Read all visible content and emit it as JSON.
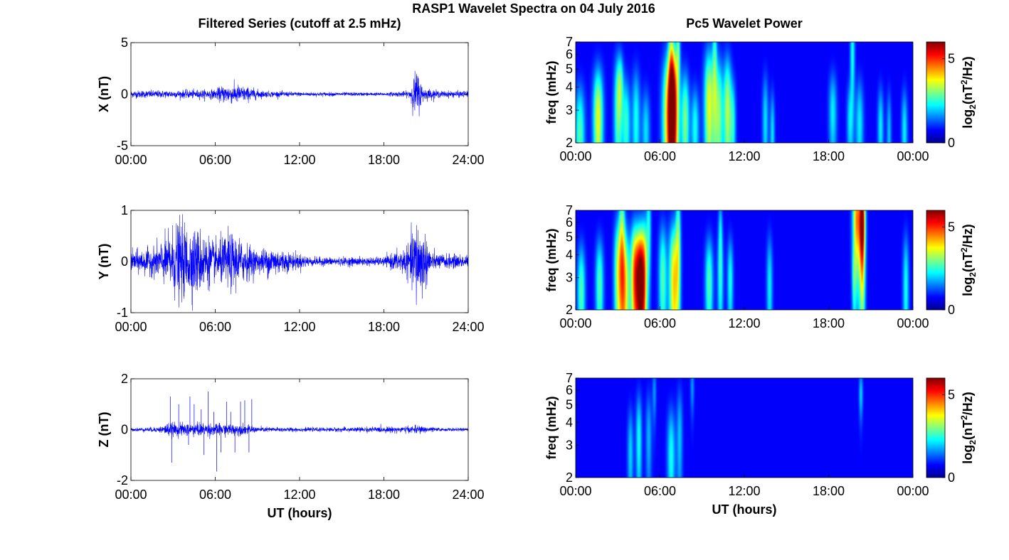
{
  "figure": {
    "title": "RASP1 Wavelet Spectra on 04 July 2016",
    "left_title": "Filtered Series (cutoff at 2.5 mHz)",
    "right_title": "Pc5 Wavelet Power"
  },
  "chart_data": [
    {
      "type": "line",
      "component": "X",
      "ylabel": "X (nT)",
      "xlabel": "",
      "xlim": [
        0,
        24
      ],
      "ylim": [
        -5,
        5
      ],
      "yticks": [
        "5",
        "0",
        "-5"
      ],
      "xtick_labels": [
        "00:00",
        "06:00",
        "12:00",
        "18:00",
        "24:00"
      ],
      "color": "#0000ff",
      "envelope": [
        [
          0,
          0.35
        ],
        [
          3,
          0.35
        ],
        [
          6,
          0.45
        ],
        [
          6.5,
          0.8
        ],
        [
          7.5,
          0.9
        ],
        [
          8.5,
          0.6
        ],
        [
          9.5,
          0.3
        ],
        [
          12,
          0.2
        ],
        [
          18,
          0.15
        ],
        [
          19.8,
          0.3
        ],
        [
          20.3,
          2.4
        ],
        [
          20.8,
          0.6
        ],
        [
          22,
          0.3
        ],
        [
          24,
          0.3
        ]
      ]
    },
    {
      "type": "line",
      "component": "Y",
      "ylabel": "Y (nT)",
      "xlabel": "",
      "xlim": [
        0,
        24
      ],
      "ylim": [
        -1,
        1
      ],
      "yticks": [
        "1",
        "0",
        "-1"
      ],
      "xtick_labels": [
        "00:00",
        "06:00",
        "12:00",
        "18:00",
        "24:00"
      ],
      "color": "#0000ff",
      "envelope": [
        [
          0,
          0.2
        ],
        [
          1.5,
          0.25
        ],
        [
          2.5,
          0.45
        ],
        [
          3.3,
          0.75
        ],
        [
          4.2,
          0.65
        ],
        [
          5,
          0.6
        ],
        [
          6,
          0.35
        ],
        [
          7,
          0.55
        ],
        [
          8,
          0.4
        ],
        [
          9,
          0.2
        ],
        [
          10,
          0.3
        ],
        [
          11,
          0.2
        ],
        [
          13,
          0.08
        ],
        [
          18,
          0.08
        ],
        [
          19.8,
          0.3
        ],
        [
          20.3,
          0.85
        ],
        [
          20.8,
          0.6
        ],
        [
          21.5,
          0.15
        ],
        [
          24,
          0.12
        ]
      ]
    },
    {
      "type": "line",
      "component": "Z",
      "ylabel": "Z (nT)",
      "xlabel": "UT (hours)",
      "xlim": [
        0,
        24
      ],
      "ylim": [
        -2,
        2
      ],
      "yticks": [
        "2",
        "0",
        "-2"
      ],
      "xtick_labels": [
        "00:00",
        "06:00",
        "12:00",
        "18:00",
        "24:00"
      ],
      "color": "#0000ff",
      "envelope": [
        [
          0,
          0.06
        ],
        [
          2,
          0.1
        ],
        [
          2.6,
          0.25
        ],
        [
          5,
          0.25
        ],
        [
          8,
          0.2
        ],
        [
          9,
          0.1
        ],
        [
          13,
          0.07
        ],
        [
          19.5,
          0.12
        ],
        [
          20.5,
          0.15
        ],
        [
          22,
          0.06
        ],
        [
          24,
          0.06
        ]
      ],
      "spikes": [
        [
          2.8,
          1.3
        ],
        [
          2.9,
          -1.3
        ],
        [
          3.4,
          1.0
        ],
        [
          4.1,
          -0.6
        ],
        [
          4.2,
          1.3
        ],
        [
          4.5,
          1.0
        ],
        [
          5.0,
          0.8
        ],
        [
          5.2,
          -1.0
        ],
        [
          5.5,
          1.5
        ],
        [
          5.9,
          0.7
        ],
        [
          6.1,
          -1.65
        ],
        [
          6.4,
          -0.9
        ],
        [
          6.8,
          1.1
        ],
        [
          7.1,
          0.7
        ],
        [
          7.4,
          -0.9
        ],
        [
          7.8,
          1.1
        ],
        [
          8.1,
          1.15
        ],
        [
          8.4,
          -0.9
        ],
        [
          8.6,
          1.2
        ]
      ]
    },
    {
      "type": "heatmap",
      "component": "X",
      "ylabel": "freq (mHz)",
      "xlabel": "",
      "colorbar_label": "log2(nT2/Hz)",
      "xlim": [
        0,
        24
      ],
      "ylim": [
        2,
        7
      ],
      "yscale": "log",
      "yticks": [
        2,
        3,
        4,
        5,
        6,
        7
      ],
      "xtick_labels": [
        "00:00",
        "06:00",
        "12:00",
        "18:00",
        "00:00"
      ],
      "colorbar_ticks": [
        "5",
        "0"
      ],
      "colorbar_range": [
        0,
        6
      ],
      "blobs": [
        [
          0.3,
          2.2,
          0.25,
          1.2,
          2.2
        ],
        [
          1.6,
          2.7,
          0.25,
          1.5,
          3.2
        ],
        [
          3.0,
          3.0,
          0.2,
          1.8,
          2.2
        ],
        [
          3.6,
          2.5,
          0.2,
          1.2,
          2.0
        ],
        [
          3.2,
          4.2,
          0.15,
          1.2,
          1.5
        ],
        [
          4.3,
          2.6,
          0.2,
          1.5,
          1.8
        ],
        [
          5.0,
          2.3,
          0.2,
          1.0,
          1.5
        ],
        [
          6.6,
          2.7,
          0.3,
          2.0,
          3.5
        ],
        [
          7.0,
          3.0,
          0.25,
          2.2,
          4.6
        ],
        [
          6.8,
          5.5,
          0.15,
          3.0,
          2.0
        ],
        [
          7.3,
          6.5,
          0.1,
          1.5,
          1.8
        ],
        [
          7.8,
          2.6,
          0.2,
          1.4,
          2.5
        ],
        [
          8.5,
          2.4,
          0.2,
          1.0,
          1.8
        ],
        [
          9.5,
          3.2,
          0.25,
          2.0,
          3.2
        ],
        [
          10.2,
          2.8,
          0.2,
          1.8,
          2.5
        ],
        [
          9.9,
          5.6,
          0.12,
          3.0,
          1.8
        ],
        [
          10.8,
          3.0,
          0.2,
          1.8,
          2.8
        ],
        [
          11.2,
          2.5,
          0.15,
          1.2,
          1.6
        ],
        [
          13.5,
          2.6,
          0.15,
          1.3,
          1.5
        ],
        [
          14.0,
          2.2,
          0.12,
          1.0,
          1.5
        ],
        [
          18.3,
          2.9,
          0.2,
          1.2,
          1.6
        ],
        [
          19.7,
          6.0,
          0.12,
          2.5,
          1.8
        ],
        [
          19.5,
          2.6,
          0.15,
          1.0,
          1.4
        ],
        [
          20.2,
          2.5,
          0.2,
          1.2,
          1.6
        ],
        [
          21.7,
          2.4,
          0.15,
          1.0,
          1.6
        ],
        [
          22.3,
          2.2,
          0.12,
          1.0,
          1.3
        ],
        [
          23.4,
          2.3,
          0.15,
          1.0,
          1.6
        ]
      ]
    },
    {
      "type": "heatmap",
      "component": "Y",
      "ylabel": "freq (mHz)",
      "xlabel": "",
      "colorbar_label": "log2(nT2/Hz)",
      "xlim": [
        0,
        24
      ],
      "ylim": [
        2,
        7
      ],
      "yscale": "log",
      "yticks": [
        2,
        3,
        4,
        5,
        6,
        7
      ],
      "xtick_labels": [
        "00:00",
        "06:00",
        "12:00",
        "18:00",
        "00:00"
      ],
      "colorbar_ticks": [
        "5",
        "0"
      ],
      "colorbar_range": [
        0,
        6
      ],
      "blobs": [
        [
          0.4,
          2.5,
          0.2,
          1.3,
          2.2
        ],
        [
          1.7,
          2.7,
          0.2,
          1.4,
          2.2
        ],
        [
          3.0,
          3.1,
          0.2,
          2.0,
          2.6
        ],
        [
          3.5,
          2.6,
          0.25,
          1.8,
          3.4
        ],
        [
          3.3,
          5.5,
          0.15,
          3.0,
          2.2
        ],
        [
          4.2,
          3.0,
          0.2,
          1.8,
          4.0
        ],
        [
          4.6,
          2.8,
          0.2,
          1.8,
          5.6
        ],
        [
          4.9,
          3.0,
          0.15,
          2.0,
          3.0
        ],
        [
          5.2,
          5.6,
          0.12,
          2.6,
          1.8
        ],
        [
          6.2,
          3.0,
          0.2,
          1.8,
          2.2
        ],
        [
          7.0,
          2.8,
          0.25,
          2.0,
          3.6
        ],
        [
          7.3,
          5.2,
          0.12,
          2.8,
          2.0
        ],
        [
          9.5,
          2.8,
          0.2,
          1.4,
          2.2
        ],
        [
          10.3,
          3.0,
          0.15,
          1.6,
          1.8
        ],
        [
          11.0,
          2.9,
          0.15,
          1.3,
          1.8
        ],
        [
          10.3,
          5.8,
          0.1,
          1.5,
          1.2
        ],
        [
          13.8,
          2.7,
          0.15,
          1.5,
          1.6
        ],
        [
          20.0,
          6.2,
          0.2,
          2.6,
          4.0
        ],
        [
          20.4,
          5.8,
          0.15,
          2.8,
          5.8
        ],
        [
          19.8,
          2.9,
          0.1,
          1.0,
          1.3
        ],
        [
          23.5,
          2.6,
          0.15,
          1.6,
          1.8
        ]
      ]
    },
    {
      "type": "heatmap",
      "component": "Z",
      "ylabel": "freq (mHz)",
      "xlabel": "UT (hours)",
      "colorbar_label": "log2(nT2/Hz)",
      "xlim": [
        0,
        24
      ],
      "ylim": [
        2,
        7
      ],
      "yscale": "log",
      "yticks": [
        2,
        3,
        4,
        5,
        6,
        7
      ],
      "xtick_labels": [
        "00:00",
        "06:00",
        "12:00",
        "18:00",
        "00:00"
      ],
      "colorbar_ticks": [
        "5",
        "0"
      ],
      "colorbar_range": [
        0,
        6
      ],
      "blobs": [
        [
          3.9,
          2.7,
          0.15,
          1.3,
          1.4
        ],
        [
          4.5,
          3.2,
          0.15,
          1.6,
          1.8
        ],
        [
          5.2,
          3.3,
          0.15,
          1.6,
          1.2
        ],
        [
          6.8,
          2.6,
          0.2,
          1.4,
          1.8
        ],
        [
          7.4,
          3.3,
          0.15,
          1.8,
          1.3
        ],
        [
          5.6,
          5.8,
          0.1,
          1.5,
          1.0
        ],
        [
          8.3,
          6.2,
          0.1,
          1.4,
          1.0
        ],
        [
          20.3,
          5.7,
          0.1,
          1.2,
          1.4
        ]
      ]
    }
  ]
}
